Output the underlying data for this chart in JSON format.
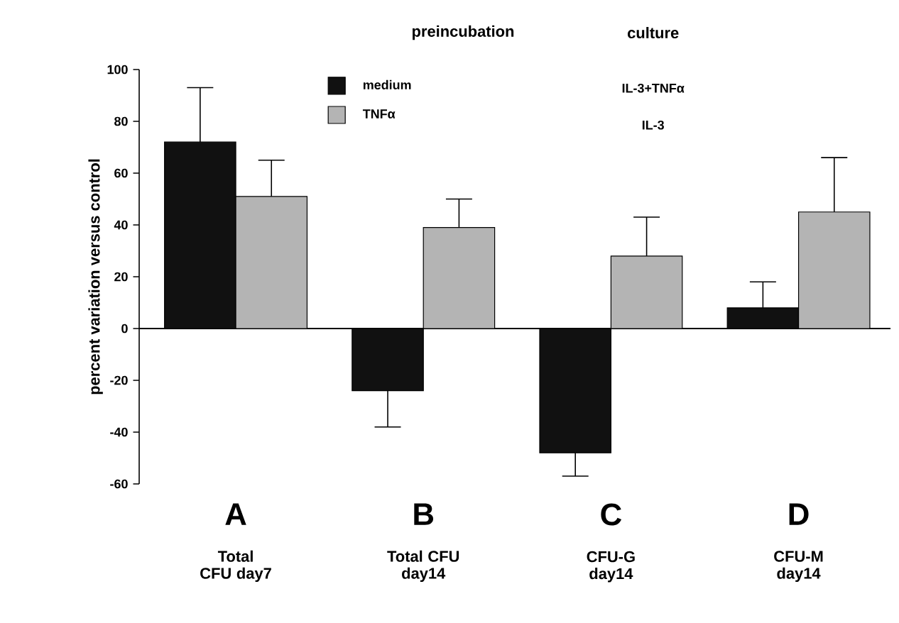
{
  "chart_data": {
    "type": "bar",
    "ylabel": "percent variation versus control",
    "legend_title": "preincubation",
    "legend": "top",
    "categories": [
      "A",
      "B",
      "C",
      "D"
    ],
    "series": [
      {
        "name": "medium",
        "color": "#111111",
        "values": [
          72,
          -24,
          -48,
          8
        ],
        "errors": [
          [
            72,
            93
          ],
          [
            -38,
            -24
          ],
          [
            -57,
            -48
          ],
          [
            8,
            18
          ]
        ]
      },
      {
        "name": "TNFα",
        "color": "#b4b4b4",
        "values": [
          51,
          39,
          28,
          45
        ],
        "errors": [
          [
            51,
            65
          ],
          [
            39,
            50
          ],
          [
            28,
            43
          ],
          [
            45,
            66
          ]
        ]
      }
    ],
    "ylim": [
      -60,
      100
    ],
    "yticks": [
      -60,
      -40,
      -20,
      0,
      20,
      40,
      60,
      80,
      100
    ],
    "annotations": [
      "Total CFU day7",
      "Total CFU day14",
      "CFU-G day14",
      "CFU-M day14",
      "culture",
      "IL-3+TNFα",
      "IL-3"
    ]
  }
}
